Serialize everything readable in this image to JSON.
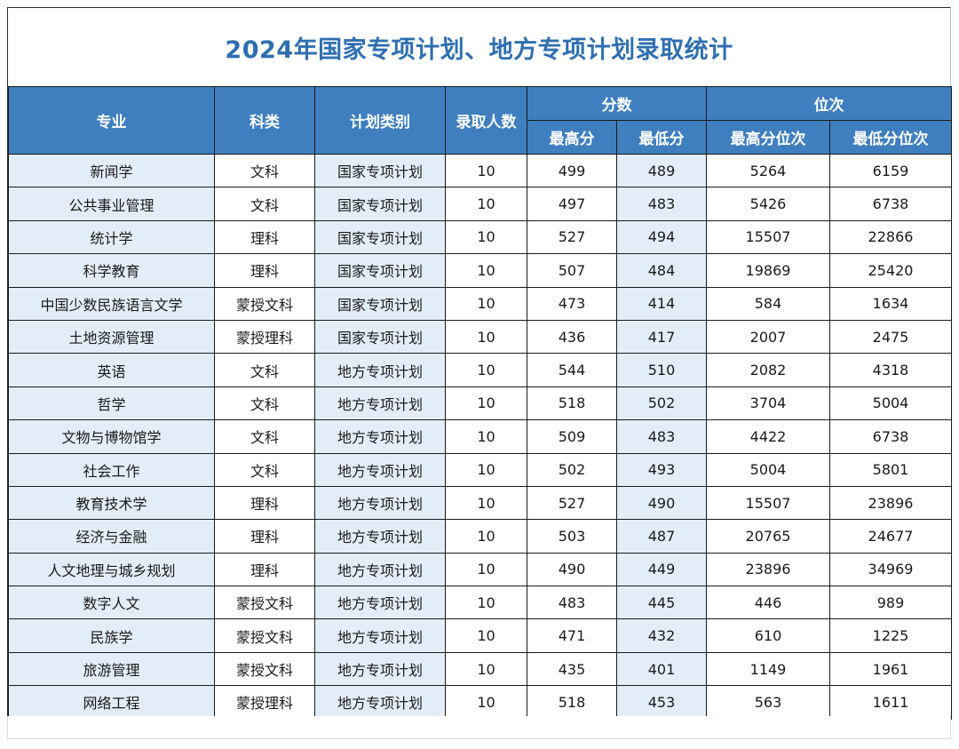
{
  "title": "2024年国家专项计划、地方专项计划录取统计",
  "headers": {
    "major": "专业",
    "subject": "科类",
    "plan_type": "计划类别",
    "admitted": "录取人数",
    "scores_group": "分数",
    "max_score": "最高分",
    "min_score": "最低分",
    "rank_group": "位次",
    "max_rank": "最高分位次",
    "min_rank": "最低分位次"
  },
  "rows": [
    {
      "major": "新闻学",
      "subject": "文科",
      "plan": "国家专项计划",
      "count": "10",
      "max": "499",
      "min": "489",
      "max_rank": "5264",
      "min_rank": "6159"
    },
    {
      "major": "公共事业管理",
      "subject": "文科",
      "plan": "国家专项计划",
      "count": "10",
      "max": "497",
      "min": "483",
      "max_rank": "5426",
      "min_rank": "6738"
    },
    {
      "major": "统计学",
      "subject": "理科",
      "plan": "国家专项计划",
      "count": "10",
      "max": "527",
      "min": "494",
      "max_rank": "15507",
      "min_rank": "22866"
    },
    {
      "major": "科学教育",
      "subject": "理科",
      "plan": "国家专项计划",
      "count": "10",
      "max": "507",
      "min": "484",
      "max_rank": "19869",
      "min_rank": "25420"
    },
    {
      "major": "中国少数民族语言文学",
      "subject": "蒙授文科",
      "plan": "国家专项计划",
      "count": "10",
      "max": "473",
      "min": "414",
      "max_rank": "584",
      "min_rank": "1634"
    },
    {
      "major": "土地资源管理",
      "subject": "蒙授理科",
      "plan": "国家专项计划",
      "count": "10",
      "max": "436",
      "min": "417",
      "max_rank": "2007",
      "min_rank": "2475"
    },
    {
      "major": "英语",
      "subject": "文科",
      "plan": "地方专项计划",
      "count": "10",
      "max": "544",
      "min": "510",
      "max_rank": "2082",
      "min_rank": "4318"
    },
    {
      "major": "哲学",
      "subject": "文科",
      "plan": "地方专项计划",
      "count": "10",
      "max": "518",
      "min": "502",
      "max_rank": "3704",
      "min_rank": "5004"
    },
    {
      "major": "文物与博物馆学",
      "subject": "文科",
      "plan": "地方专项计划",
      "count": "10",
      "max": "509",
      "min": "483",
      "max_rank": "4422",
      "min_rank": "6738"
    },
    {
      "major": "社会工作",
      "subject": "文科",
      "plan": "地方专项计划",
      "count": "10",
      "max": "502",
      "min": "493",
      "max_rank": "5004",
      "min_rank": "5801"
    },
    {
      "major": "教育技术学",
      "subject": "理科",
      "plan": "地方专项计划",
      "count": "10",
      "max": "527",
      "min": "490",
      "max_rank": "15507",
      "min_rank": "23896"
    },
    {
      "major": "经济与金融",
      "subject": "理科",
      "plan": "地方专项计划",
      "count": "10",
      "max": "503",
      "min": "487",
      "max_rank": "20765",
      "min_rank": "24677"
    },
    {
      "major": "人文地理与城乡规划",
      "subject": "理科",
      "plan": "地方专项计划",
      "count": "10",
      "max": "490",
      "min": "449",
      "max_rank": "23896",
      "min_rank": "34969"
    },
    {
      "major": "数字人文",
      "subject": "蒙授文科",
      "plan": "地方专项计划",
      "count": "10",
      "max": "483",
      "min": "445",
      "max_rank": "446",
      "min_rank": "989"
    },
    {
      "major": "民族学",
      "subject": "蒙授文科",
      "plan": "地方专项计划",
      "count": "10",
      "max": "471",
      "min": "432",
      "max_rank": "610",
      "min_rank": "1225"
    },
    {
      "major": "旅游管理",
      "subject": "蒙授文科",
      "plan": "地方专项计划",
      "count": "10",
      "max": "435",
      "min": "401",
      "max_rank": "1149",
      "min_rank": "1961"
    },
    {
      "major": "网络工程",
      "subject": "蒙授理科",
      "plan": "地方专项计划",
      "count": "10",
      "max": "518",
      "min": "453",
      "max_rank": "563",
      "min_rank": "1611"
    }
  ],
  "colors": {
    "title": "#2f6fb1",
    "header_bg": "#3f7fc0",
    "header_text": "#ffffff",
    "light_cell": "#e3edf7"
  }
}
